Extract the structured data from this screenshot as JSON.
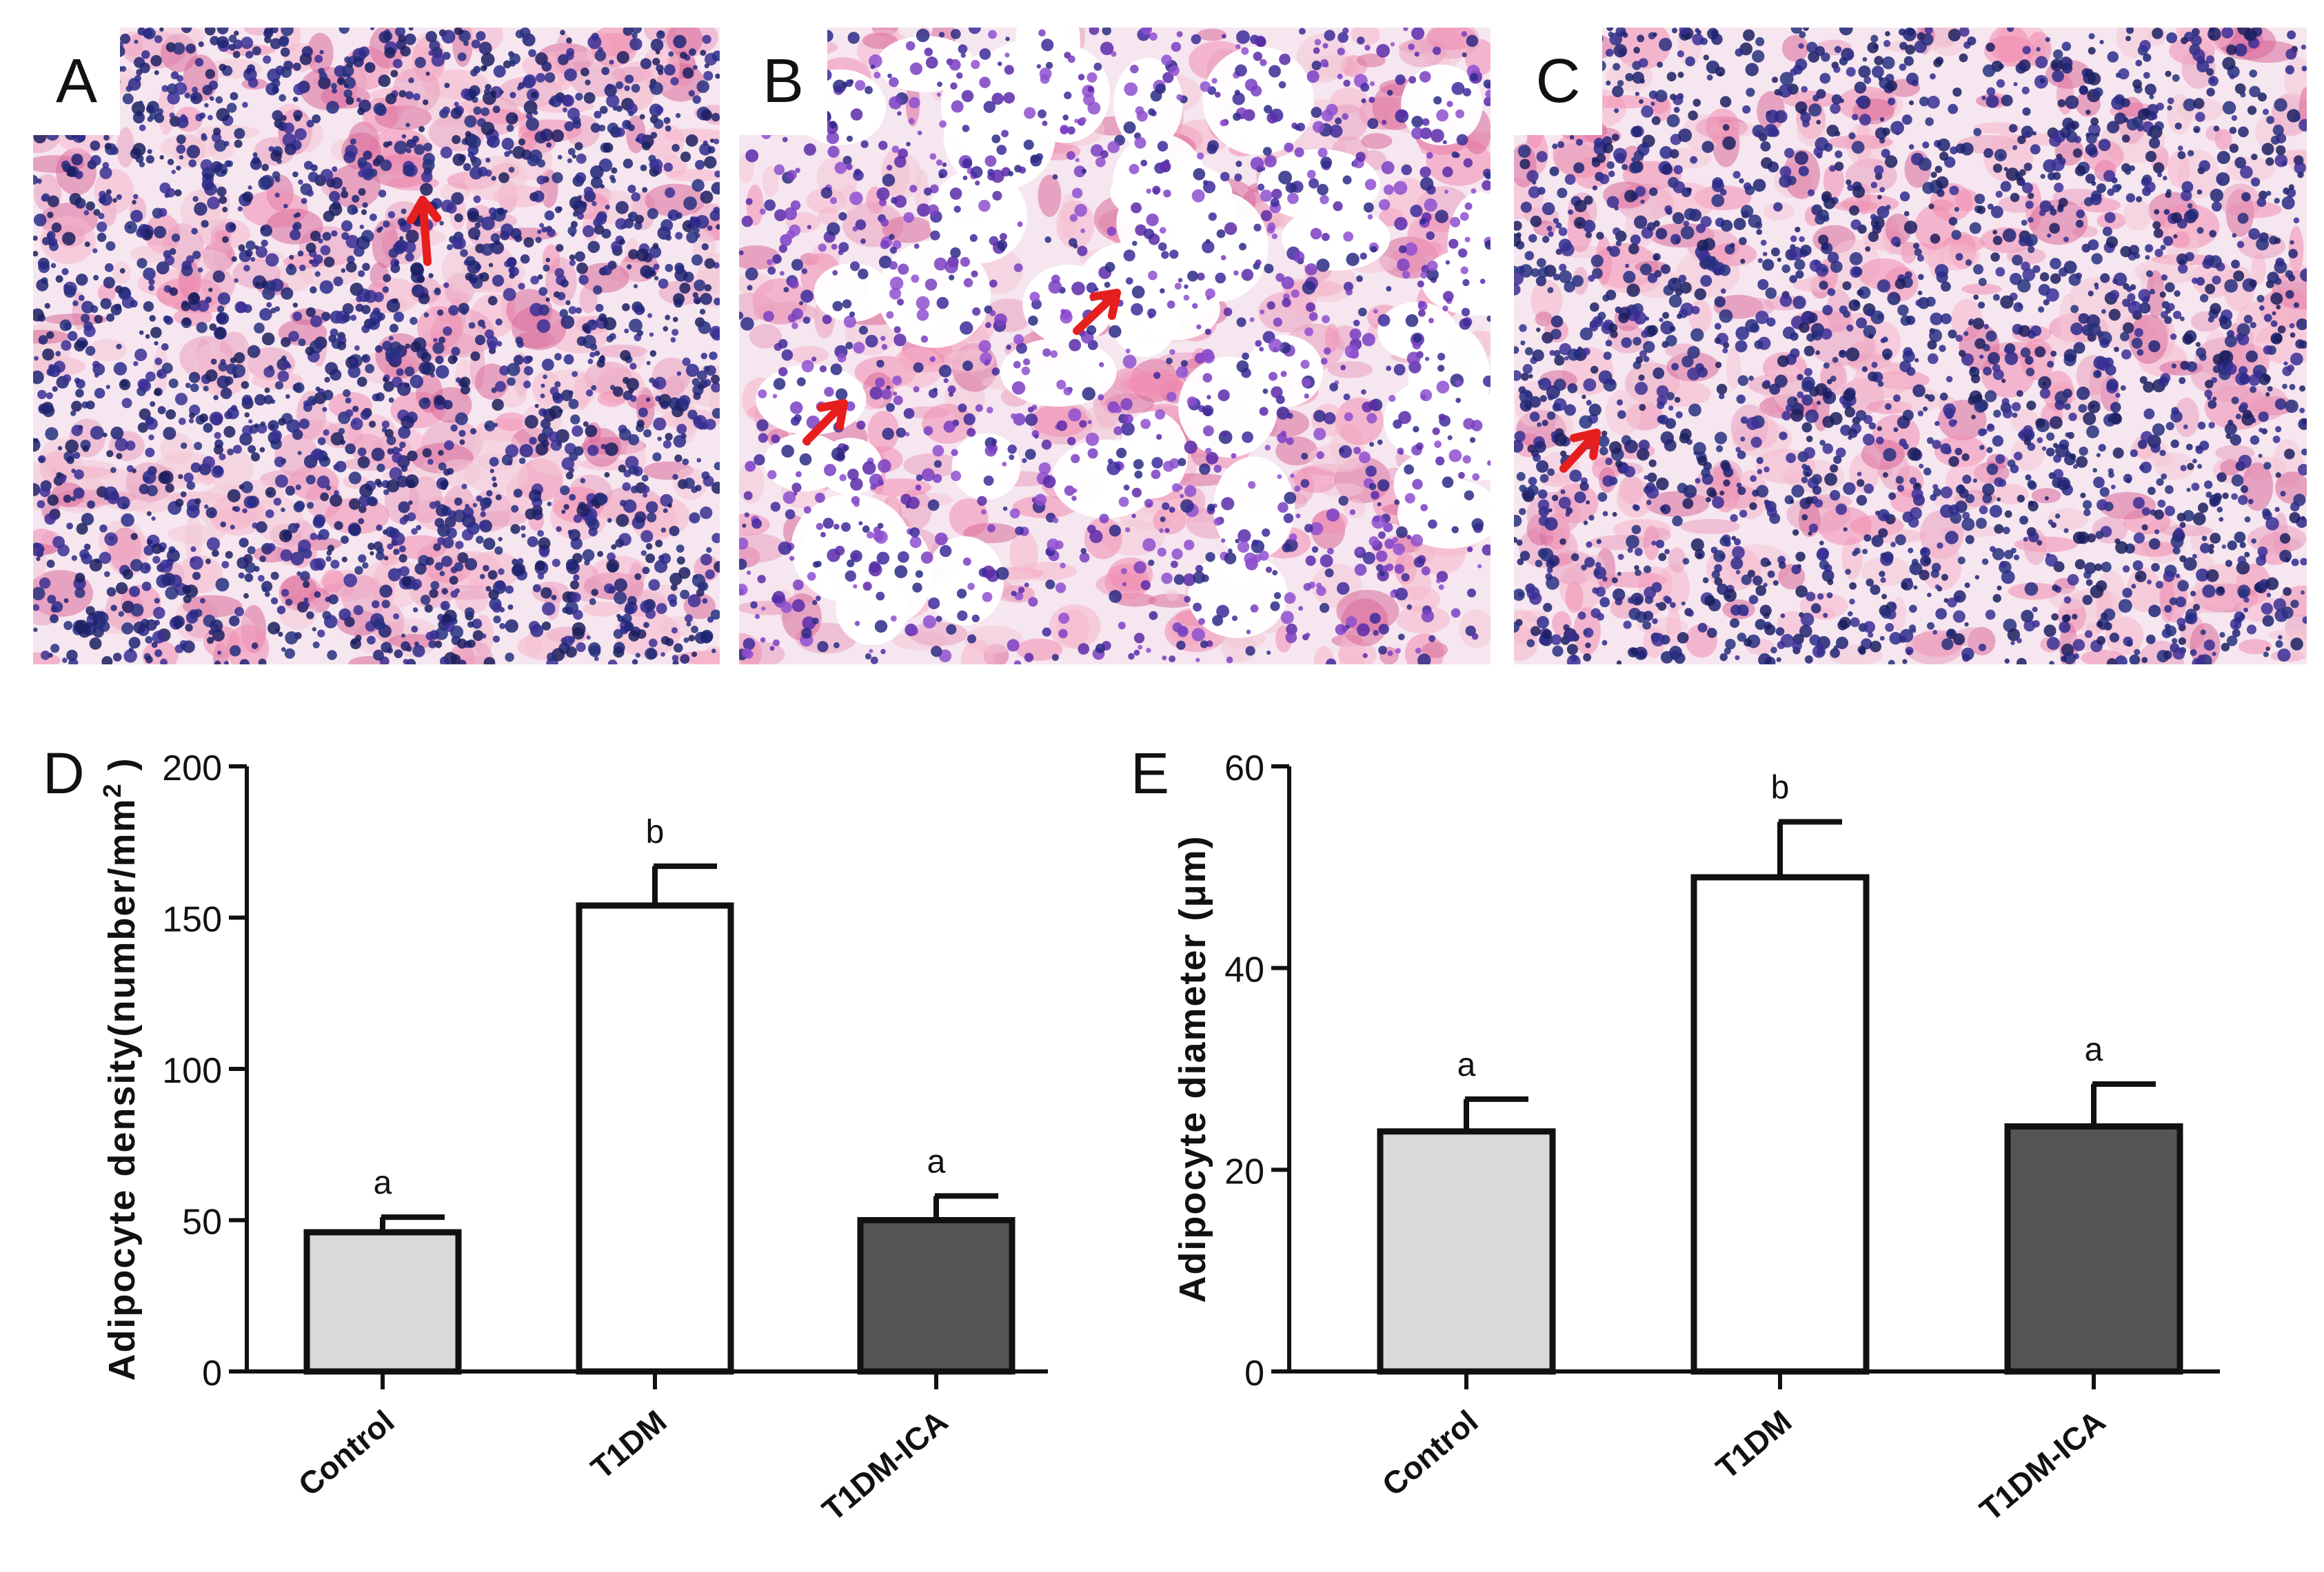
{
  "panels": [
    {
      "letter": "A",
      "stain_theme": "dense",
      "arrows": 1
    },
    {
      "letter": "B",
      "stain_theme": "adipocyte-rich",
      "arrows": 2
    },
    {
      "letter": "C",
      "stain_theme": "dense",
      "arrows": 1
    }
  ],
  "colors": {
    "nuclei": "#2a2a8a",
    "cytoplasm": "#e07aa0",
    "arrow": "#e61e1e",
    "bar_control": "#d9d9d9",
    "bar_t1dm": "#ffffff",
    "bar_t1dm_ica": "#555555"
  },
  "chart_data": [
    {
      "letter": "D",
      "type": "bar",
      "categories": [
        "Control",
        "T1DM",
        "T1DM-ICA"
      ],
      "values": [
        46,
        154,
        50
      ],
      "errors": [
        5,
        13,
        8
      ],
      "sig_labels": [
        "a",
        "b",
        "a"
      ],
      "ylabel": "Adipocyte density(number/mm",
      "ylabel_sup": "2",
      "ylabel_close": ")",
      "ylim": [
        0,
        200
      ],
      "yticks": [
        "0",
        "50",
        "100",
        "150",
        "200"
      ],
      "ytick_values": [
        0,
        50,
        100,
        150,
        200
      ]
    },
    {
      "letter": "E",
      "type": "bar",
      "categories": [
        "Control",
        "T1DM",
        "T1DM-ICA"
      ],
      "values": [
        23.8,
        49,
        24.3
      ],
      "errors": [
        3.2,
        5.5,
        4.2
      ],
      "sig_labels": [
        "a",
        "b",
        "a"
      ],
      "ylabel": "Adipocyte diameter (μm)",
      "ylabel_sup": "",
      "ylabel_close": "",
      "ylim": [
        0,
        60
      ],
      "yticks": [
        "0",
        "20",
        "40",
        "60"
      ],
      "ytick_values": [
        0,
        20,
        40,
        60
      ]
    }
  ]
}
